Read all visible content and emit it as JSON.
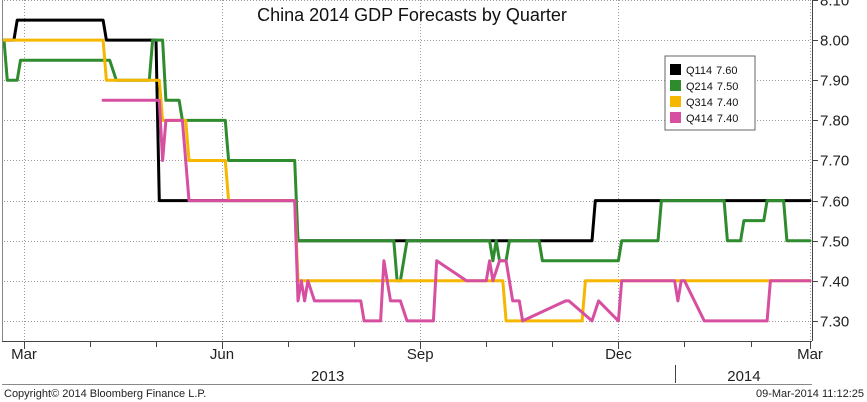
{
  "chart_data": {
    "type": "line",
    "title": "China 2014 GDP Forecasts by Quarter",
    "xlabel": "",
    "ylabel": "",
    "ylim": [
      7.25,
      8.1
    ],
    "y_ticks": [
      7.3,
      7.4,
      7.5,
      7.6,
      7.7,
      7.8,
      7.9,
      8.0,
      8.1
    ],
    "x_range": [
      0,
      12.2
    ],
    "x_ticks": [
      {
        "label": "Mar",
        "x": 0.3
      },
      {
        "label": "Jun",
        "x": 3.3
      },
      {
        "label": "Sep",
        "x": 6.3
      },
      {
        "label": "Dec",
        "x": 9.3
      },
      {
        "label": "Mar",
        "x": 12.2
      }
    ],
    "x_minor_ticks": [
      1.3,
      2.3,
      4.3,
      5.3,
      7.3,
      8.3,
      10.3,
      11.3
    ],
    "years": [
      {
        "label": "2013",
        "x": 4.9
      },
      {
        "label": "2014",
        "x": 11.2
      }
    ],
    "year_divider_x": 10.15,
    "grid": true,
    "legend_position": "top-right",
    "series": [
      {
        "name": "Q114",
        "last": "7.60",
        "color": "#000000",
        "x": [
          0,
          0.15,
          0.2,
          1.5,
          1.55,
          2.3,
          2.35,
          3.65,
          3.7,
          3.8,
          3.85,
          4.4,
          4.45,
          8.9,
          8.95,
          12.2
        ],
        "y": [
          8.0,
          8.0,
          8.05,
          8.05,
          8.0,
          8.0,
          7.6,
          7.6,
          7.6,
          7.6,
          7.6,
          7.6,
          7.5,
          7.5,
          7.6,
          7.6
        ]
      },
      {
        "name": "Q214",
        "last": "7.50",
        "color": "#2e8b2e",
        "x": [
          0,
          0.05,
          0.1,
          0.2,
          0.25,
          1.6,
          1.7,
          2.2,
          2.25,
          2.4,
          2.45,
          2.65,
          2.7,
          3.35,
          3.4,
          4.4,
          4.45,
          5.9,
          5.95,
          6.0,
          6.1,
          7.35,
          7.4,
          7.45,
          7.5,
          7.6,
          7.65,
          8.1,
          8.15,
          9.3,
          9.35,
          9.9,
          9.95,
          10.9,
          10.95,
          11.15,
          11.2,
          11.5,
          11.55,
          11.8,
          11.85,
          12.1,
          12.15,
          12.2
        ],
        "y": [
          8.0,
          7.9,
          7.9,
          7.9,
          7.95,
          7.95,
          7.9,
          7.9,
          8.0,
          8.0,
          7.85,
          7.85,
          7.8,
          7.8,
          7.7,
          7.7,
          7.5,
          7.5,
          7.4,
          7.4,
          7.5,
          7.5,
          7.45,
          7.5,
          7.45,
          7.45,
          7.5,
          7.5,
          7.45,
          7.45,
          7.5,
          7.5,
          7.6,
          7.6,
          7.5,
          7.5,
          7.55,
          7.55,
          7.6,
          7.6,
          7.5,
          7.5,
          7.5,
          7.5
        ]
      },
      {
        "name": "Q314",
        "last": "7.40",
        "color": "#f5b700",
        "x": [
          0,
          1.5,
          1.55,
          2.35,
          2.4,
          2.75,
          2.8,
          3.35,
          3.4,
          4.4,
          4.45,
          7.55,
          7.6,
          8.75,
          8.8,
          12.2
        ],
        "y": [
          8.0,
          8.0,
          7.9,
          7.9,
          7.8,
          7.8,
          7.7,
          7.7,
          7.6,
          7.6,
          7.4,
          7.4,
          7.3,
          7.3,
          7.4,
          7.4
        ]
      },
      {
        "name": "Q414",
        "last": "7.40",
        "color": "#d64fa0",
        "x": [
          1.5,
          2.35,
          2.4,
          2.45,
          2.5,
          2.7,
          2.8,
          4.4,
          4.45,
          4.5,
          4.55,
          4.6,
          4.7,
          5.4,
          5.45,
          5.7,
          5.75,
          5.85,
          5.9,
          6.0,
          6.1,
          6.5,
          6.55,
          7.0,
          7.05,
          7.3,
          7.35,
          7.4,
          7.5,
          7.6,
          7.7,
          7.8,
          7.85,
          8.5,
          8.55,
          8.9,
          9.0,
          9.3,
          9.35,
          9.5,
          9.55,
          10.15,
          10.2,
          10.25,
          10.3,
          10.6,
          10.65,
          11.55,
          11.6,
          12.2
        ],
        "y": [
          7.85,
          7.85,
          7.7,
          7.8,
          7.8,
          7.8,
          7.6,
          7.6,
          7.35,
          7.4,
          7.35,
          7.4,
          7.35,
          7.35,
          7.3,
          7.3,
          7.45,
          7.35,
          7.35,
          7.35,
          7.3,
          7.3,
          7.45,
          7.4,
          7.4,
          7.4,
          7.45,
          7.4,
          7.45,
          7.45,
          7.35,
          7.35,
          7.3,
          7.35,
          7.35,
          7.3,
          7.35,
          7.3,
          7.4,
          7.4,
          7.4,
          7.4,
          7.35,
          7.4,
          7.4,
          7.3,
          7.3,
          7.3,
          7.4,
          7.4
        ]
      }
    ]
  },
  "footer": {
    "copyright": "Copyright© 2014 Bloomberg Finance L.P.",
    "date": "09-Mar-2014 11:12:25"
  }
}
